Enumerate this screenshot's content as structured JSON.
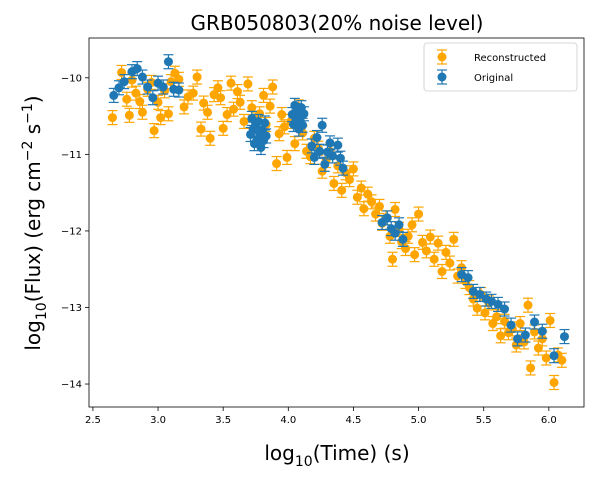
{
  "chart_data": {
    "type": "scatter",
    "title": "GRB050803(20% noise level)",
    "xlabel_main": "log",
    "xlabel_sub": "10",
    "xlabel_rest": "(Time) (s)",
    "ylabel_main": "log",
    "ylabel_sub": "10",
    "ylabel_rest": "(Flux) (erg cm",
    "ylabel_sup1": "−2",
    "ylabel_mid": " s",
    "ylabel_sup2": "−1",
    "ylabel_end": ")",
    "xlim": [
      2.47,
      6.27
    ],
    "ylim": [
      -14.3,
      -9.48
    ],
    "x_ticks": [
      2.5,
      3.0,
      3.5,
      4.0,
      4.5,
      5.0,
      5.5,
      6.0
    ],
    "x_tick_labels": [
      "2.5",
      "3.0",
      "3.5",
      "4.0",
      "4.5",
      "5.0",
      "5.5",
      "6.0"
    ],
    "y_ticks": [
      -14,
      -13,
      -12,
      -11,
      -10
    ],
    "y_tick_labels": [
      "−14",
      "−13",
      "−12",
      "−11",
      "−10"
    ],
    "legend_position": "top-right",
    "grid": false,
    "series": [
      {
        "name": "Reconstructed",
        "color": "#ffa500",
        "points": [
          [
            2.65,
            -10.52
          ],
          [
            2.72,
            -9.93
          ],
          [
            2.76,
            -10.28
          ],
          [
            2.78,
            -10.49
          ],
          [
            2.8,
            -10.03
          ],
          [
            2.83,
            -10.2
          ],
          [
            2.86,
            -10.31
          ],
          [
            2.88,
            -10.45
          ],
          [
            2.92,
            -10.15
          ],
          [
            2.95,
            -10.06
          ],
          [
            2.97,
            -10.69
          ],
          [
            3.0,
            -10.32
          ],
          [
            3.02,
            -10.52
          ],
          [
            3.05,
            -10.17
          ],
          [
            3.08,
            -10.47
          ],
          [
            3.1,
            -10.05
          ],
          [
            3.13,
            -9.94
          ],
          [
            3.16,
            -10.02
          ],
          [
            3.2,
            -10.38
          ],
          [
            3.23,
            -10.25
          ],
          [
            3.27,
            -10.2
          ],
          [
            3.3,
            -9.99
          ],
          [
            3.33,
            -10.67
          ],
          [
            3.35,
            -10.33
          ],
          [
            3.38,
            -10.45
          ],
          [
            3.4,
            -10.79
          ],
          [
            3.43,
            -10.22
          ],
          [
            3.46,
            -10.13
          ],
          [
            3.48,
            -10.26
          ],
          [
            3.5,
            -10.66
          ],
          [
            3.53,
            -10.48
          ],
          [
            3.56,
            -10.07
          ],
          [
            3.58,
            -10.41
          ],
          [
            3.61,
            -10.18
          ],
          [
            3.63,
            -10.32
          ],
          [
            3.66,
            -10.57
          ],
          [
            3.69,
            -10.08
          ],
          [
            3.72,
            -10.39
          ],
          [
            3.75,
            -10.55
          ],
          [
            3.78,
            -10.47
          ],
          [
            3.81,
            -10.23
          ],
          [
            3.83,
            -10.61
          ],
          [
            3.86,
            -10.37
          ],
          [
            3.88,
            -10.12
          ],
          [
            3.91,
            -11.12
          ],
          [
            3.93,
            -10.73
          ],
          [
            3.95,
            -10.48
          ],
          [
            3.97,
            -10.64
          ],
          [
            3.99,
            -11.04
          ],
          [
            4.02,
            -10.57
          ],
          [
            4.05,
            -10.86
          ],
          [
            4.08,
            -10.38
          ],
          [
            4.11,
            -10.72
          ],
          [
            4.14,
            -10.96
          ],
          [
            4.17,
            -11.03
          ],
          [
            4.2,
            -10.79
          ],
          [
            4.23,
            -10.92
          ],
          [
            4.26,
            -11.22
          ],
          [
            4.29,
            -11.08
          ],
          [
            4.32,
            -10.96
          ],
          [
            4.35,
            -11.38
          ],
          [
            4.38,
            -11.15
          ],
          [
            4.41,
            -11.47
          ],
          [
            4.44,
            -11.24
          ],
          [
            4.47,
            -11.33
          ],
          [
            4.5,
            -11.19
          ],
          [
            4.53,
            -11.56
          ],
          [
            4.56,
            -11.44
          ],
          [
            4.58,
            -11.71
          ],
          [
            4.61,
            -11.52
          ],
          [
            4.64,
            -11.62
          ],
          [
            4.67,
            -11.78
          ],
          [
            4.7,
            -11.68
          ],
          [
            4.72,
            -11.9
          ],
          [
            4.75,
            -11.83
          ],
          [
            4.78,
            -12.07
          ],
          [
            4.8,
            -12.37
          ],
          [
            4.82,
            -11.72
          ],
          [
            4.85,
            -11.98
          ],
          [
            4.87,
            -12.14
          ],
          [
            4.9,
            -12.23
          ],
          [
            4.92,
            -12.07
          ],
          [
            4.95,
            -11.92
          ],
          [
            4.97,
            -12.31
          ],
          [
            5.0,
            -11.78
          ],
          [
            5.03,
            -12.15
          ],
          [
            5.06,
            -12.26
          ],
          [
            5.09,
            -12.08
          ],
          [
            5.12,
            -12.37
          ],
          [
            5.15,
            -12.16
          ],
          [
            5.18,
            -12.53
          ],
          [
            5.21,
            -12.28
          ],
          [
            5.24,
            -12.42
          ],
          [
            5.27,
            -12.11
          ],
          [
            5.3,
            -12.59
          ],
          [
            5.33,
            -12.48
          ],
          [
            5.36,
            -12.66
          ],
          [
            5.39,
            -12.74
          ],
          [
            5.42,
            -12.89
          ],
          [
            5.45,
            -13.01
          ],
          [
            5.48,
            -12.83
          ],
          [
            5.51,
            -13.07
          ],
          [
            5.54,
            -12.94
          ],
          [
            5.57,
            -13.21
          ],
          [
            5.6,
            -13.12
          ],
          [
            5.63,
            -13.37
          ],
          [
            5.66,
            -13.18
          ],
          [
            5.69,
            -13.33
          ],
          [
            5.72,
            -13.28
          ],
          [
            5.75,
            -13.49
          ],
          [
            5.78,
            -13.21
          ],
          [
            5.81,
            -13.45
          ],
          [
            5.84,
            -12.97
          ],
          [
            5.86,
            -13.79
          ],
          [
            5.89,
            -13.32
          ],
          [
            5.92,
            -13.53
          ],
          [
            5.95,
            -13.41
          ],
          [
            5.98,
            -13.66
          ],
          [
            6.01,
            -13.17
          ],
          [
            6.04,
            -13.98
          ],
          [
            6.07,
            -13.62
          ],
          [
            6.1,
            -13.69
          ]
        ]
      },
      {
        "name": "Original",
        "color": "#1f77b4",
        "points": [
          [
            2.66,
            -10.23
          ],
          [
            2.7,
            -10.13
          ],
          [
            2.74,
            -10.05
          ],
          [
            2.8,
            -9.92
          ],
          [
            2.84,
            -9.88
          ],
          [
            2.88,
            -9.99
          ],
          [
            2.92,
            -10.12
          ],
          [
            2.96,
            -10.26
          ],
          [
            3.0,
            -10.07
          ],
          [
            3.04,
            -10.12
          ],
          [
            3.08,
            -9.79
          ],
          [
            3.12,
            -10.15
          ],
          [
            3.16,
            -10.16
          ],
          [
            3.71,
            -10.74
          ],
          [
            3.72,
            -10.53
          ],
          [
            3.73,
            -10.67
          ],
          [
            3.74,
            -10.86
          ],
          [
            3.75,
            -10.62
          ],
          [
            3.76,
            -10.81
          ],
          [
            3.77,
            -10.57
          ],
          [
            3.78,
            -10.73
          ],
          [
            3.79,
            -10.91
          ],
          [
            3.8,
            -10.68
          ],
          [
            3.81,
            -10.82
          ],
          [
            3.82,
            -10.59
          ],
          [
            3.83,
            -10.76
          ],
          [
            4.03,
            -10.48
          ],
          [
            4.04,
            -10.61
          ],
          [
            4.05,
            -10.36
          ],
          [
            4.06,
            -10.55
          ],
          [
            4.07,
            -10.43
          ],
          [
            4.08,
            -10.67
          ],
          [
            4.09,
            -10.51
          ],
          [
            4.1,
            -10.39
          ],
          [
            4.11,
            -10.62
          ],
          [
            4.12,
            -10.47
          ],
          [
            4.18,
            -10.89
          ],
          [
            4.2,
            -11.04
          ],
          [
            4.22,
            -10.78
          ],
          [
            4.24,
            -10.96
          ],
          [
            4.26,
            -10.62
          ],
          [
            4.28,
            -11.13
          ],
          [
            4.3,
            -10.97
          ],
          [
            4.32,
            -10.85
          ],
          [
            4.34,
            -11.02
          ],
          [
            4.38,
            -10.88
          ],
          [
            4.4,
            -11.05
          ],
          [
            4.42,
            -11.18
          ],
          [
            4.72,
            -11.89
          ],
          [
            4.76,
            -11.83
          ],
          [
            4.79,
            -11.97
          ],
          [
            4.82,
            -12.03
          ],
          [
            4.85,
            -11.92
          ],
          [
            4.88,
            -12.11
          ],
          [
            5.33,
            -12.57
          ],
          [
            5.38,
            -12.61
          ],
          [
            5.42,
            -12.79
          ],
          [
            5.47,
            -12.83
          ],
          [
            5.52,
            -12.89
          ],
          [
            5.56,
            -12.92
          ],
          [
            5.61,
            -12.96
          ],
          [
            5.66,
            -13.02
          ],
          [
            5.71,
            -13.23
          ],
          [
            5.76,
            -13.41
          ],
          [
            5.82,
            -13.36
          ],
          [
            5.89,
            -13.19
          ],
          [
            5.95,
            -13.31
          ],
          [
            6.04,
            -13.63
          ],
          [
            6.12,
            -13.38
          ]
        ]
      }
    ]
  }
}
